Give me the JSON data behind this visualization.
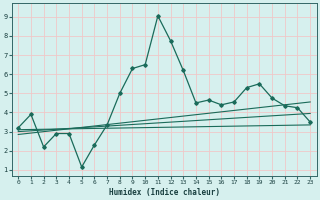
{
  "xlabel": "Humidex (Indice chaleur)",
  "bg_color": "#d6f0ee",
  "grid_color": "#f0c8c8",
  "line_color": "#1a6b5a",
  "xlim": [
    -0.5,
    23.5
  ],
  "ylim": [
    0.7,
    9.7
  ],
  "xticks": [
    0,
    1,
    2,
    3,
    4,
    5,
    6,
    7,
    8,
    9,
    10,
    11,
    12,
    13,
    14,
    15,
    16,
    17,
    18,
    19,
    20,
    21,
    22,
    23
  ],
  "yticks": [
    1,
    2,
    3,
    4,
    5,
    6,
    7,
    8,
    9
  ],
  "line1_x": [
    0,
    1,
    2,
    3,
    4,
    5,
    6,
    7,
    8,
    9,
    10,
    11,
    12,
    13,
    14,
    15,
    16,
    17,
    18,
    19,
    20,
    21,
    22,
    23
  ],
  "line1_y": [
    3.2,
    3.9,
    2.2,
    2.9,
    2.9,
    1.15,
    2.3,
    3.35,
    5.0,
    6.3,
    6.5,
    9.05,
    7.75,
    6.2,
    4.5,
    4.65,
    4.4,
    4.55,
    5.3,
    5.5,
    4.75,
    4.35,
    4.25,
    3.5
  ],
  "line2_x": [
    0,
    23
  ],
  "line2_y": [
    3.1,
    3.35
  ],
  "line3_x": [
    0,
    23
  ],
  "line3_y": [
    2.85,
    4.55
  ],
  "line4_x": [
    0,
    23
  ],
  "line4_y": [
    3.0,
    3.95
  ]
}
